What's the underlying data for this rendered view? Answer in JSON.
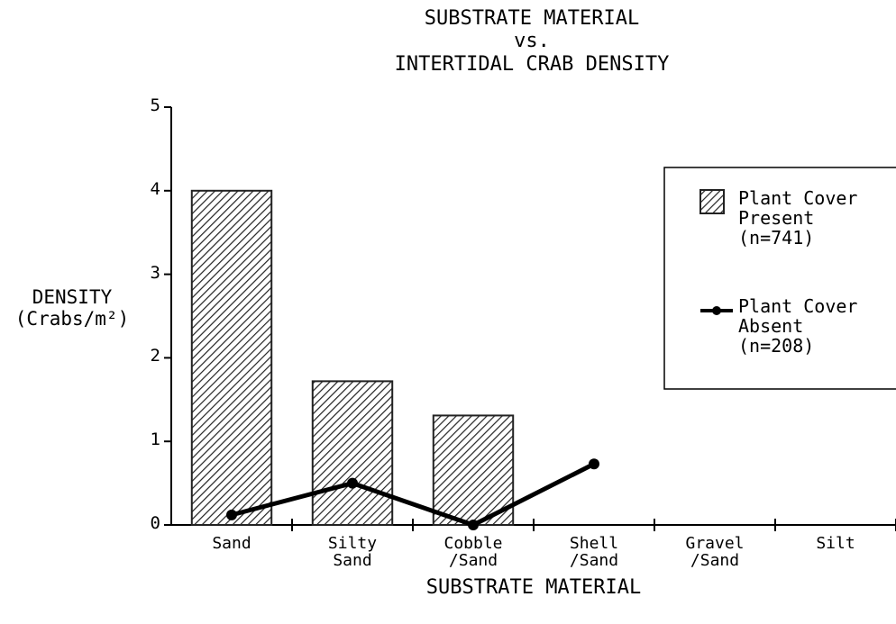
{
  "chart_data": {
    "type": "bar",
    "title": "SUBSTRATE MATERIAL\nvs.\nINTERTIDAL CRAB DENSITY",
    "x_label": "SUBSTRATE MATERIAL",
    "y_label": "DENSITY\n(Crabs/m²)",
    "categories": [
      "Sand",
      "Silty\nSand",
      "Cobble\n/Sand",
      "Shell\n/Sand",
      "Gravel\n/Sand",
      "Silt"
    ],
    "series": [
      {
        "name": "Plant Cover\nPresent\n(n=741)",
        "type": "bar",
        "color": "#222222",
        "values": [
          4,
          1.72,
          1.31,
          null,
          null,
          null
        ]
      },
      {
        "name": "Plant Cover\nAbsent\n(n=208)",
        "type": "line",
        "color": "#000000",
        "values": [
          0.12,
          0.5,
          0,
          0.73,
          null,
          null
        ]
      }
    ],
    "ylim": [
      0,
      5
    ],
    "yticks": [
      0,
      1,
      2,
      3,
      4,
      5
    ],
    "legend": "upper right"
  }
}
